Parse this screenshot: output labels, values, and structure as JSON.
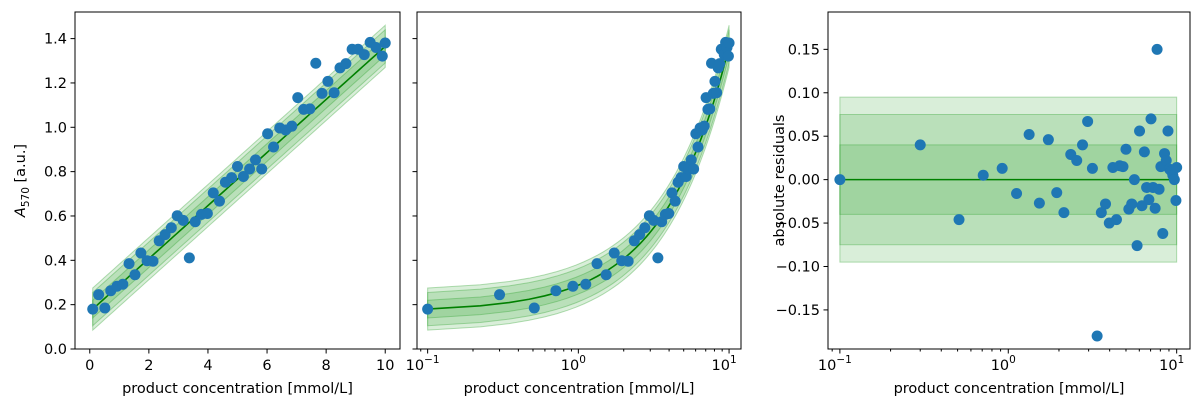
{
  "chart_data": [
    {
      "type": "scatter",
      "xlabel": "product concentration   [mmol/L]",
      "ylabel": "A_570   [a.u.]",
      "xscale": "linear",
      "xlim": [
        -0.5,
        10.5
      ],
      "ylim": [
        0.0,
        1.52
      ],
      "xticks": [
        0,
        2,
        4,
        6,
        8,
        10
      ],
      "xtick_labels": [
        "0",
        "2",
        "4",
        "6",
        "8",
        "10"
      ],
      "yticks": [
        0.0,
        0.2,
        0.4,
        0.6,
        0.8,
        1.0,
        1.2,
        1.4
      ],
      "ytick_labels": [
        "0.0",
        "0.2",
        "0.4",
        "0.6",
        "0.8",
        "1.0",
        "1.2",
        "1.4"
      ],
      "grid": false,
      "x": [
        0.1,
        0.3,
        0.51,
        0.71,
        0.92,
        1.12,
        1.33,
        1.53,
        1.73,
        1.94,
        2.14,
        2.35,
        2.55,
        2.76,
        2.96,
        3.16,
        3.37,
        3.57,
        3.78,
        3.98,
        4.18,
        4.39,
        4.59,
        4.8,
        5.0,
        5.2,
        5.41,
        5.61,
        5.82,
        6.02,
        6.22,
        6.43,
        6.63,
        6.84,
        7.04,
        7.24,
        7.45,
        7.65,
        7.86,
        8.06,
        8.27,
        8.47,
        8.67,
        8.88,
        9.08,
        9.29,
        9.49,
        9.69,
        9.9,
        10.0
      ],
      "y": [
        0.18,
        0.245,
        0.185,
        0.263,
        0.283,
        0.292,
        0.385,
        0.335,
        0.433,
        0.398,
        0.396,
        0.488,
        0.516,
        0.547,
        0.601,
        0.58,
        0.411,
        0.574,
        0.607,
        0.611,
        0.704,
        0.667,
        0.752,
        0.773,
        0.823,
        0.778,
        0.812,
        0.853,
        0.812,
        0.971,
        0.911,
        0.997,
        0.988,
        1.005,
        1.134,
        1.081,
        1.083,
        1.289,
        1.153,
        1.207,
        1.156,
        1.268,
        1.287,
        1.352,
        1.352,
        1.328,
        1.383,
        1.36,
        1.321,
        1.38
      ],
      "fit_line": {
        "x": [
          0.1,
          10.0
        ],
        "y": [
          0.18,
          1.365
        ]
      },
      "bands_halfwidth": [
        0.04,
        0.075,
        0.095
      ],
      "colors": {
        "points": "#1f77b4",
        "fit": "#008000",
        "band": "#2ca02c"
      }
    },
    {
      "type": "scatter",
      "xlabel": "product concentration   [mmol/L]",
      "ylabel": "",
      "xscale": "log",
      "xlim": [
        0.085,
        12.0
      ],
      "ylim": [
        0.0,
        1.52
      ],
      "xticks": [
        0.1,
        1,
        10
      ],
      "xtick_labels": [
        "10",
        "10",
        "10"
      ],
      "xtick_exponents": [
        "−1",
        "0",
        "1"
      ],
      "shared_y": true,
      "grid": false,
      "x": [
        0.1,
        0.3,
        0.51,
        0.71,
        0.92,
        1.12,
        1.33,
        1.53,
        1.73,
        1.94,
        2.14,
        2.35,
        2.55,
        2.76,
        2.96,
        3.16,
        3.37,
        3.57,
        3.78,
        3.98,
        4.18,
        4.39,
        4.59,
        4.8,
        5.0,
        5.2,
        5.41,
        5.61,
        5.82,
        6.02,
        6.22,
        6.43,
        6.63,
        6.84,
        7.04,
        7.24,
        7.45,
        7.65,
        7.86,
        8.06,
        8.27,
        8.47,
        8.67,
        8.88,
        9.08,
        9.29,
        9.49,
        9.69,
        9.9,
        10.0
      ],
      "y": [
        0.18,
        0.245,
        0.185,
        0.263,
        0.283,
        0.292,
        0.385,
        0.335,
        0.433,
        0.398,
        0.396,
        0.488,
        0.516,
        0.547,
        0.601,
        0.58,
        0.411,
        0.574,
        0.607,
        0.611,
        0.704,
        0.667,
        0.752,
        0.773,
        0.823,
        0.778,
        0.812,
        0.853,
        0.812,
        0.971,
        0.911,
        0.997,
        0.988,
        1.005,
        1.134,
        1.081,
        1.083,
        1.289,
        1.153,
        1.207,
        1.156,
        1.268,
        1.287,
        1.352,
        1.352,
        1.328,
        1.383,
        1.36,
        1.321,
        1.38
      ],
      "fit_line": {
        "x": [
          0.1,
          10.0
        ],
        "y": [
          0.18,
          1.365
        ]
      },
      "bands_halfwidth": [
        0.04,
        0.075,
        0.095
      ],
      "colors": {
        "points": "#1f77b4",
        "fit": "#008000",
        "band": "#2ca02c"
      }
    },
    {
      "type": "scatter",
      "xlabel": "product concentration   [mmol/L]",
      "ylabel": "absolute residuals",
      "xscale": "log",
      "xlim": [
        0.085,
        12.0
      ],
      "ylim": [
        -0.195,
        0.193
      ],
      "xticks": [
        0.1,
        1,
        10
      ],
      "xtick_labels": [
        "10",
        "10",
        "10"
      ],
      "xtick_exponents": [
        "−1",
        "0",
        "1"
      ],
      "yticks": [
        -0.15,
        -0.1,
        -0.05,
        0.0,
        0.05,
        0.1,
        0.15
      ],
      "ytick_labels": [
        "−0.15",
        "−0.10",
        "−0.05",
        "0.00",
        "0.05",
        "0.10",
        "0.15"
      ],
      "grid": false,
      "x": [
        0.1,
        0.3,
        0.51,
        0.71,
        0.92,
        1.12,
        1.33,
        1.53,
        1.73,
        1.94,
        2.14,
        2.35,
        2.55,
        2.76,
        2.96,
        3.16,
        3.37,
        3.57,
        3.78,
        3.98,
        4.18,
        4.39,
        4.59,
        4.8,
        5.0,
        5.2,
        5.41,
        5.61,
        5.82,
        6.02,
        6.22,
        6.43,
        6.63,
        6.84,
        7.04,
        7.24,
        7.45,
        7.65,
        7.86,
        8.06,
        8.27,
        8.47,
        8.67,
        8.88,
        9.08,
        9.29,
        9.49,
        9.69,
        9.9,
        10.0
      ],
      "y": [
        0.0,
        0.04,
        -0.046,
        0.005,
        0.013,
        -0.016,
        0.052,
        -0.027,
        0.046,
        -0.015,
        -0.038,
        0.029,
        0.022,
        0.04,
        0.067,
        0.013,
        -0.18,
        -0.038,
        -0.028,
        -0.05,
        0.014,
        -0.046,
        0.016,
        0.015,
        0.035,
        -0.034,
        -0.028,
        0.0,
        -0.076,
        0.056,
        -0.03,
        0.032,
        -0.009,
        -0.023,
        0.07,
        -0.009,
        -0.033,
        0.15,
        -0.011,
        0.015,
        -0.062,
        0.03,
        0.022,
        0.056,
        0.012,
        0.01,
        0.005,
        0.0,
        -0.024,
        0.014
      ],
      "fit_line": {
        "x": [
          0.1,
          10.0
        ],
        "y": [
          0.0,
          0.0
        ]
      },
      "bands_halfwidth": [
        0.04,
        0.075,
        0.095
      ],
      "colors": {
        "points": "#1f77b4",
        "fit": "#008000",
        "band": "#2ca02c"
      }
    }
  ]
}
